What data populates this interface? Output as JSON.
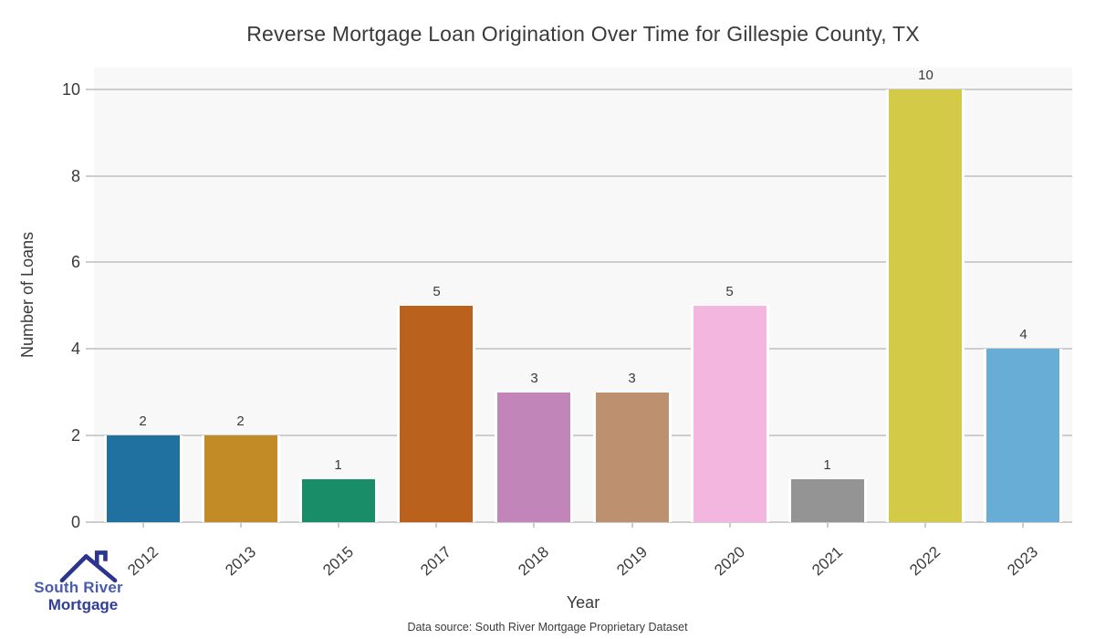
{
  "chart_data": {
    "type": "bar",
    "title": "Reverse Mortgage Loan Origination Over Time for Gillespie County, TX",
    "xlabel": "Year",
    "ylabel": "Number of Loans",
    "categories": [
      "2012",
      "2013",
      "2015",
      "2017",
      "2018",
      "2019",
      "2020",
      "2021",
      "2022",
      "2023"
    ],
    "values": [
      2,
      2,
      1,
      5,
      3,
      3,
      5,
      1,
      10,
      4
    ],
    "bar_colors": [
      "#2070a0",
      "#c38b25",
      "#198c68",
      "#bb611e",
      "#c285ba",
      "#bd9170",
      "#f3b6de",
      "#949494",
      "#d3cb47",
      "#68add6"
    ],
    "yticks": [
      0,
      2,
      4,
      6,
      8,
      10
    ],
    "ylim": [
      0,
      10.5
    ],
    "grid": "horizontal-only",
    "legend": "none",
    "panel_bg": "#f8f8f8",
    "grid_color": "#cdcdce",
    "text_color": "#3a3a3a"
  },
  "footer": {
    "source": "Data source: South River Mortgage Proprietary Dataset"
  },
  "logo": {
    "line1": "South River",
    "line2": "Mortgage",
    "roof_color": "#2b3590",
    "text_color_line1": "#4a5cae",
    "text_color_line2": "#2f3f96"
  }
}
